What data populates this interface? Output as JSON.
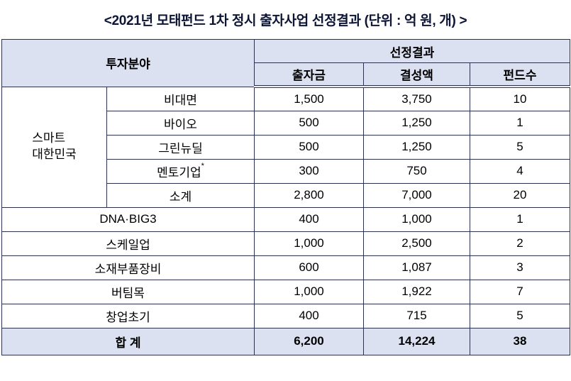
{
  "page": {
    "title": "<2021년 모태펀드 1차 정시 출자사업 선정결과 (단위 : 억 원, 개) >"
  },
  "table": {
    "header": {
      "category": "투자분야",
      "result_group": "선정결과",
      "columns": [
        "출자금",
        "결성액",
        "펀드수"
      ]
    },
    "smart_group": {
      "label": "스마트\n대한민국",
      "rows": [
        {
          "name": "비대면",
          "values": [
            "1,500",
            "3,750",
            "10"
          ]
        },
        {
          "name": "바이오",
          "values": [
            "500",
            "1,250",
            "1"
          ]
        },
        {
          "name": "그린뉴딜",
          "values": [
            "500",
            "1,250",
            "5"
          ]
        },
        {
          "name": "멘토기업",
          "note_mark": "*",
          "values": [
            "300",
            "750",
            "4"
          ]
        },
        {
          "name": "소계",
          "values": [
            "2,800",
            "7,000",
            "20"
          ]
        }
      ]
    },
    "rows": [
      {
        "name": "DNA·BIG3",
        "values": [
          "400",
          "1,000",
          "1"
        ]
      },
      {
        "name": "스케일업",
        "values": [
          "1,000",
          "2,500",
          "2"
        ]
      },
      {
        "name": "소재부품장비",
        "values": [
          "600",
          "1,087",
          "3"
        ]
      },
      {
        "name": "버팀목",
        "values": [
          "1,000",
          "1,922",
          "7"
        ]
      },
      {
        "name": "창업초기",
        "values": [
          "400",
          "715",
          "5"
        ]
      }
    ],
    "total": {
      "name": "합 계",
      "values": [
        "6,200",
        "14,224",
        "38"
      ]
    }
  },
  "colors": {
    "header_bg": "#dce1f2",
    "border": "#2c3150",
    "title_text": "#0d1536"
  }
}
